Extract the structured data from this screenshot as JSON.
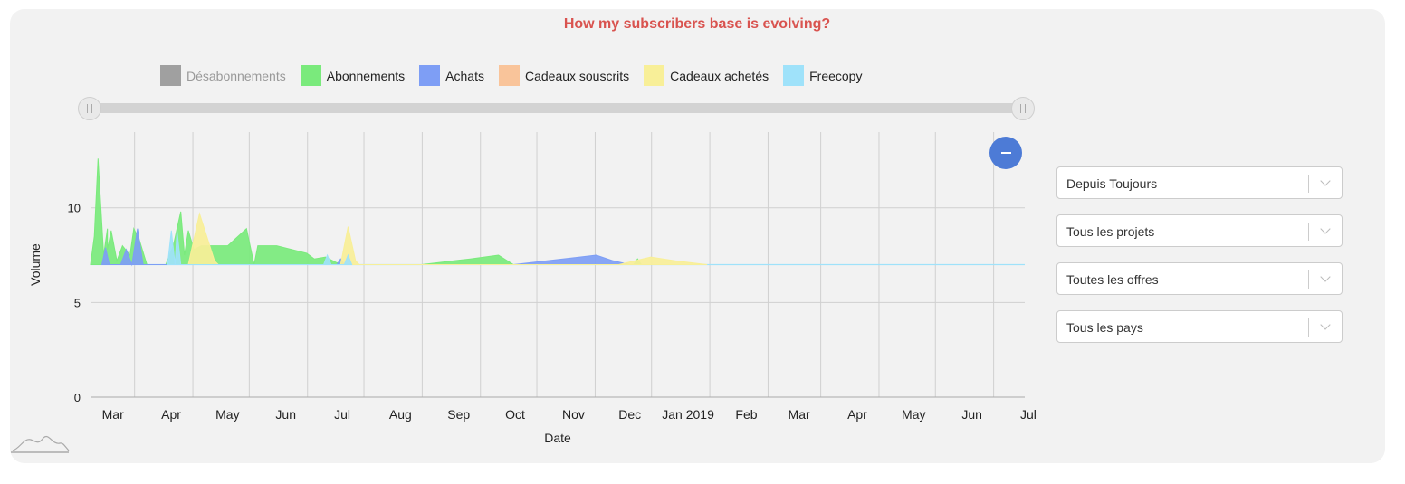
{
  "chart_data": {
    "type": "area",
    "title": "How my subscribers base is evolving?",
    "xlabel": "Date",
    "ylabel": "Volume",
    "ylim": [
      0,
      14
    ],
    "yticks": [
      0,
      5,
      10
    ],
    "xlim": [
      "2018-02-20",
      "2019-07-02"
    ],
    "xticks": [
      {
        "label": "Mar",
        "date": "2018-03-01"
      },
      {
        "label": "Apr",
        "date": "2018-04-01"
      },
      {
        "label": "May",
        "date": "2018-05-01"
      },
      {
        "label": "Jun",
        "date": "2018-06-01"
      },
      {
        "label": "Jul",
        "date": "2018-07-01"
      },
      {
        "label": "Aug",
        "date": "2018-08-01"
      },
      {
        "label": "Sep",
        "date": "2018-09-01"
      },
      {
        "label": "Oct",
        "date": "2018-10-01"
      },
      {
        "label": "Nov",
        "date": "2018-11-01"
      },
      {
        "label": "Dec",
        "date": "2018-12-01"
      },
      {
        "label": "Jan 2019",
        "date": "2019-01-01"
      },
      {
        "label": "Feb",
        "date": "2019-02-01"
      },
      {
        "label": "Mar",
        "date": "2019-03-01"
      },
      {
        "label": "Apr",
        "date": "2019-04-01"
      },
      {
        "label": "May",
        "date": "2019-05-01"
      },
      {
        "label": "Jun",
        "date": "2019-06-01"
      },
      {
        "label": "Jul",
        "date": "2019-07-01"
      }
    ],
    "grid": true,
    "legend_position": "top",
    "series": [
      {
        "name": "Désabonnements",
        "color": "#a0a0a0",
        "visible": false,
        "points": []
      },
      {
        "name": "Abonnements",
        "color": "#7aea7c",
        "visible": true,
        "points": [
          [
            "2018-02-20",
            7
          ],
          [
            "2018-02-22",
            8.5
          ],
          [
            "2018-02-24",
            12.6
          ],
          [
            "2018-02-27",
            7.5
          ],
          [
            "2018-02-29",
            8.9
          ],
          [
            "2018-03-01",
            7.8
          ],
          [
            "2018-03-03",
            8.8
          ],
          [
            "2018-03-06",
            7.2
          ],
          [
            "2018-03-09",
            8.0
          ],
          [
            "2018-03-13",
            7.5
          ],
          [
            "2018-03-15",
            8.9
          ],
          [
            "2018-03-18",
            8.3
          ],
          [
            "2018-03-22",
            7.0
          ],
          [
            "2018-03-26",
            7.0
          ],
          [
            "2018-04-01",
            7.0
          ],
          [
            "2018-04-05",
            8.0
          ],
          [
            "2018-04-09",
            9.8
          ],
          [
            "2018-04-11",
            7.5
          ],
          [
            "2018-04-13",
            8.8
          ],
          [
            "2018-04-16",
            7.8
          ],
          [
            "2018-04-20",
            8.0
          ],
          [
            "2018-05-04",
            8.0
          ],
          [
            "2018-05-14",
            8.9
          ],
          [
            "2018-05-18",
            7.0
          ],
          [
            "2018-05-20",
            8.0
          ],
          [
            "2018-05-30",
            8.0
          ],
          [
            "2018-06-15",
            7.6
          ],
          [
            "2018-06-19",
            7.3
          ],
          [
            "2018-06-25",
            7.4
          ],
          [
            "2018-07-01",
            7.1
          ],
          [
            "2018-07-10",
            7.0
          ],
          [
            "2018-08-15",
            7.0
          ],
          [
            "2018-09-10",
            7.3
          ],
          [
            "2018-09-25",
            7.5
          ],
          [
            "2018-10-03",
            7.0
          ],
          [
            "2018-12-06",
            7.0
          ],
          [
            "2018-12-08",
            7.3
          ],
          [
            "2018-12-10",
            7.0
          ]
        ]
      },
      {
        "name": "Achats",
        "color": "#7e9ef5",
        "visible": true,
        "points": [
          [
            "2018-02-26",
            7
          ],
          [
            "2018-02-28",
            7.9
          ],
          [
            "2018-03-02",
            7
          ],
          [
            "2018-03-08",
            7
          ],
          [
            "2018-03-11",
            7.8
          ],
          [
            "2018-03-14",
            7
          ],
          [
            "2018-03-17",
            8.9
          ],
          [
            "2018-03-20",
            7
          ],
          [
            "2018-07-01",
            7
          ],
          [
            "2018-07-03",
            7.3
          ],
          [
            "2018-07-05",
            7
          ],
          [
            "2018-10-03",
            7
          ],
          [
            "2018-11-16",
            7.5
          ],
          [
            "2018-11-25",
            7.2
          ],
          [
            "2018-12-04",
            7
          ]
        ]
      },
      {
        "name": "Cadeaux souscrits",
        "color": "#f9c49a",
        "visible": true,
        "points": []
      },
      {
        "name": "Cadeaux achetés",
        "color": "#f8ef98",
        "visible": true,
        "points": [
          [
            "2018-04-13",
            7
          ],
          [
            "2018-04-19",
            9.7
          ],
          [
            "2018-04-27",
            7.2
          ],
          [
            "2018-04-29",
            7
          ],
          [
            "2018-07-03",
            7
          ],
          [
            "2018-07-07",
            9.0
          ],
          [
            "2018-07-11",
            7.2
          ],
          [
            "2018-07-13",
            7
          ],
          [
            "2018-11-28",
            7
          ],
          [
            "2018-12-15",
            7.4
          ],
          [
            "2018-12-28",
            7.2
          ],
          [
            "2019-01-14",
            7
          ]
        ]
      },
      {
        "name": "Freecopy",
        "color": "#9fe2fa",
        "visible": true,
        "points": [
          [
            "2018-04-02",
            7
          ],
          [
            "2018-04-04",
            8.8
          ],
          [
            "2018-04-06",
            7
          ],
          [
            "2018-04-07",
            8.8
          ],
          [
            "2018-04-09",
            7
          ],
          [
            "2018-06-24",
            7
          ],
          [
            "2018-06-26",
            7.5
          ],
          [
            "2018-06-28",
            7
          ],
          [
            "2018-07-05",
            7
          ],
          [
            "2018-07-07",
            7.5
          ],
          [
            "2018-07-09",
            7
          ]
        ]
      }
    ]
  },
  "filters": [
    {
      "value": "Depuis Toujours"
    },
    {
      "value": "Tous les projets"
    },
    {
      "value": "Toutes les offres"
    },
    {
      "value": "Tous les pays"
    }
  ],
  "icons": {
    "zoom_out": "minus-icon",
    "slider_handle": "grip-icon",
    "logo": "area-chart-logo-icon"
  }
}
